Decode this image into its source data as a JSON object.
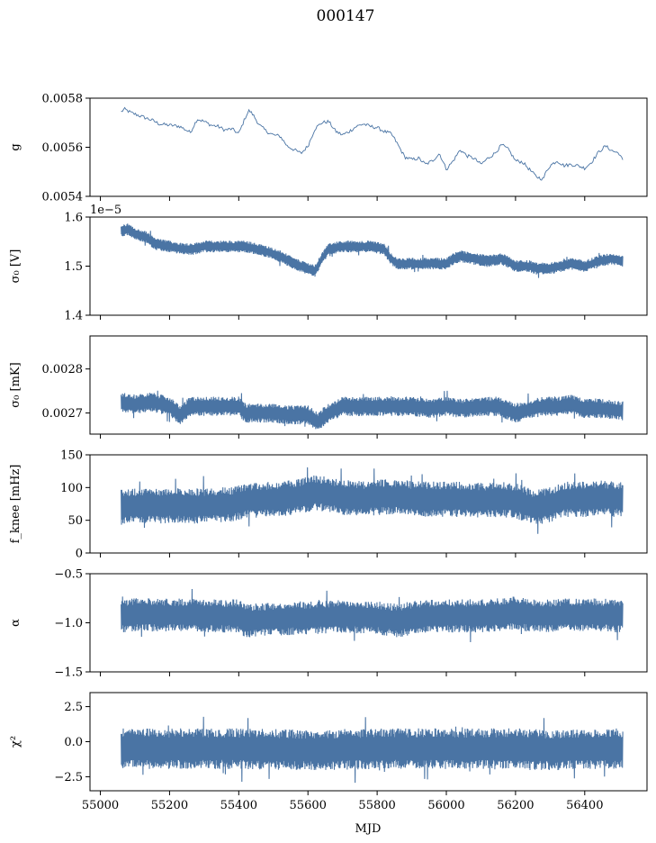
{
  "figure": {
    "title": "000147",
    "xlabel": "MJD",
    "line_color": "#4a74a4"
  },
  "chart_data": [
    {
      "type": "line",
      "name": "gain",
      "ylabel": "g",
      "xlim": [
        54970,
        56580
      ],
      "ylim": [
        0.0054,
        0.0058
      ],
      "yticks": [
        0.0054,
        0.0056,
        0.0058
      ],
      "ytick_labels": [
        "0.0054",
        "0.0056",
        "0.0058"
      ],
      "offset_text": "",
      "xticks_labeled": false,
      "style": "thin",
      "x": [
        55060,
        55070,
        55090,
        55110,
        55130,
        55150,
        55170,
        55200,
        55230,
        55260,
        55280,
        55300,
        55320,
        55340,
        55360,
        55380,
        55400,
        55420,
        55430,
        55440,
        55460,
        55480,
        55500,
        55520,
        55540,
        55560,
        55580,
        55600,
        55620,
        55640,
        55660,
        55680,
        55700,
        55720,
        55740,
        55760,
        55780,
        55800,
        55820,
        55840,
        55850,
        55860,
        55880,
        55900,
        55920,
        55940,
        55960,
        55980,
        56000,
        56020,
        56040,
        56060,
        56080,
        56100,
        56120,
        56140,
        56160,
        56180,
        56200,
        56220,
        56240,
        56260,
        56280,
        56290,
        56300,
        56320,
        56340,
        56360,
        56380,
        56400,
        56420,
        56440,
        56460,
        56480,
        56500,
        56510
      ],
      "y": [
        0.005745,
        0.005755,
        0.00574,
        0.00573,
        0.00572,
        0.00571,
        0.005695,
        0.00569,
        0.005685,
        0.00566,
        0.005715,
        0.005705,
        0.00569,
        0.005685,
        0.00567,
        0.005675,
        0.005655,
        0.005725,
        0.00575,
        0.005735,
        0.00569,
        0.005665,
        0.00565,
        0.005645,
        0.005605,
        0.00559,
        0.005575,
        0.005605,
        0.005675,
        0.0057,
        0.005705,
        0.005665,
        0.00565,
        0.005665,
        0.005685,
        0.005695,
        0.005685,
        0.00568,
        0.005665,
        0.005655,
        0.005635,
        0.00561,
        0.00556,
        0.00555,
        0.005555,
        0.00553,
        0.005545,
        0.005575,
        0.00551,
        0.005545,
        0.00559,
        0.005565,
        0.005555,
        0.00553,
        0.005555,
        0.005575,
        0.00561,
        0.00559,
        0.005545,
        0.00554,
        0.00551,
        0.00548,
        0.00547,
        0.005505,
        0.005525,
        0.005545,
        0.005525,
        0.00553,
        0.005525,
        0.005515,
        0.00554,
        0.00558,
        0.005605,
        0.005585,
        0.005575,
        0.005545
      ]
    },
    {
      "type": "line",
      "name": "sigma0_volts",
      "ylabel": "σ₀ [V]",
      "xlim": [
        54970,
        56580
      ],
      "ylim": [
        1.4,
        1.6
      ],
      "yticks": [
        1.4,
        1.5,
        1.6
      ],
      "ytick_labels": [
        "1.4",
        "1.5",
        "1.6"
      ],
      "offset_text": "1e−5",
      "xticks_labeled": false,
      "style": "band",
      "band_half_width": 0.012,
      "x": [
        55060,
        55080,
        55100,
        55130,
        55160,
        55200,
        55240,
        55270,
        55300,
        55340,
        55380,
        55420,
        55450,
        55480,
        55520,
        55560,
        55600,
        55620,
        55640,
        55660,
        55700,
        55740,
        55780,
        55820,
        55840,
        55860,
        55880,
        55920,
        55960,
        56000,
        56020,
        56040,
        56080,
        56120,
        56160,
        56200,
        56240,
        56260,
        56280,
        56300,
        56330,
        56360,
        56400,
        56440,
        56480,
        56510
      ],
      "y": [
        1.572,
        1.575,
        1.565,
        1.56,
        1.545,
        1.54,
        1.535,
        1.535,
        1.54,
        1.54,
        1.54,
        1.54,
        1.535,
        1.53,
        1.52,
        1.505,
        1.495,
        1.49,
        1.515,
        1.535,
        1.54,
        1.54,
        1.54,
        1.535,
        1.515,
        1.505,
        1.505,
        1.505,
        1.505,
        1.505,
        1.515,
        1.52,
        1.515,
        1.51,
        1.515,
        1.5,
        1.5,
        1.495,
        1.495,
        1.495,
        1.5,
        1.505,
        1.5,
        1.51,
        1.515,
        1.51
      ]
    },
    {
      "type": "line",
      "name": "sigma0_mk",
      "ylabel": "σ₀ [mK]",
      "xlim": [
        54970,
        56580
      ],
      "ylim": [
        0.002652,
        0.002875
      ],
      "yticks": [
        0.0027,
        0.0028
      ],
      "ytick_labels": [
        "0.0027",
        "0.0028"
      ],
      "offset_text": "",
      "xticks_labeled": false,
      "style": "band",
      "band_half_width": 2.2e-05,
      "x": [
        55060,
        55100,
        55150,
        55200,
        55230,
        55260,
        55300,
        55350,
        55400,
        55420,
        55450,
        55500,
        55550,
        55600,
        55630,
        55650,
        55700,
        55750,
        55800,
        55850,
        55900,
        55950,
        56000,
        56050,
        56100,
        56150,
        56200,
        56250,
        56280,
        56320,
        56360,
        56400,
        56450,
        56510
      ],
      "y": [
        0.002725,
        0.00272,
        0.002725,
        0.002715,
        0.002695,
        0.002715,
        0.002715,
        0.002715,
        0.002715,
        0.0027,
        0.0027,
        0.0027,
        0.002695,
        0.002695,
        0.00268,
        0.002695,
        0.002715,
        0.002715,
        0.002715,
        0.002715,
        0.002715,
        0.00271,
        0.002715,
        0.00271,
        0.002715,
        0.002715,
        0.0027,
        0.00271,
        0.002715,
        0.002715,
        0.00272,
        0.00271,
        0.00271,
        0.002705
      ]
    },
    {
      "type": "line",
      "name": "f_knee",
      "ylabel": "f_knee [mHz]",
      "xlim": [
        54970,
        56580
      ],
      "ylim": [
        0,
        150
      ],
      "yticks": [
        0,
        50,
        100,
        150
      ],
      "ytick_labels": [
        "0",
        "50",
        "100",
        "150"
      ],
      "offset_text": "",
      "xticks_labeled": false,
      "style": "band",
      "band_half_width": 27,
      "x": [
        55060,
        55100,
        55200,
        55300,
        55380,
        55420,
        55500,
        55560,
        55620,
        55650,
        55700,
        55760,
        55800,
        55860,
        55900,
        55950,
        56000,
        56050,
        56100,
        56150,
        56200,
        56250,
        56290,
        56340,
        56400,
        56450,
        56510
      ],
      "y": [
        70,
        72,
        72,
        72,
        74,
        80,
        82,
        85,
        92,
        90,
        85,
        83,
        85,
        86,
        83,
        82,
        82,
        82,
        80,
        82,
        80,
        70,
        72,
        82,
        82,
        84,
        82
      ]
    },
    {
      "type": "line",
      "name": "alpha",
      "ylabel": "α",
      "xlim": [
        54970,
        56580
      ],
      "ylim": [
        -1.5,
        -0.5
      ],
      "yticks": [
        -1.5,
        -1.0,
        -0.5
      ],
      "ytick_labels": [
        "−1.5",
        "−1.0",
        "−0.5"
      ],
      "offset_text": "",
      "xticks_labeled": false,
      "style": "band",
      "band_half_width": 0.17,
      "x": [
        55060,
        55100,
        55200,
        55300,
        55400,
        55420,
        55500,
        55600,
        55700,
        55800,
        55860,
        55900,
        55950,
        56000,
        56100,
        56200,
        56250,
        56300,
        56360,
        56420,
        56510
      ],
      "y": [
        -0.93,
        -0.92,
        -0.92,
        -0.93,
        -0.93,
        -0.98,
        -0.96,
        -0.95,
        -0.93,
        -0.95,
        -0.98,
        -0.95,
        -0.93,
        -0.93,
        -0.93,
        -0.9,
        -0.93,
        -0.93,
        -0.92,
        -0.92,
        -0.93
      ]
    },
    {
      "type": "line",
      "name": "chi2",
      "ylabel": "χ²",
      "xlim": [
        54970,
        56580
      ],
      "ylim": [
        -3.5,
        3.5
      ],
      "yticks": [
        -2.5,
        0.0,
        2.5
      ],
      "ytick_labels": [
        "−2.5",
        "0.0",
        "2.5"
      ],
      "offset_text": "",
      "xticks_labeled": true,
      "xticks": [
        55000,
        55200,
        55400,
        55600,
        55800,
        56000,
        56200,
        56400
      ],
      "xtick_labels": [
        "55000",
        "55200",
        "55400",
        "55600",
        "55800",
        "56000",
        "56200",
        "56400"
      ],
      "style": "band",
      "band_half_width": 1.45,
      "x": [
        55060,
        55200,
        55400,
        55600,
        55800,
        55900,
        56000,
        56200,
        56300,
        56400,
        56510
      ],
      "y": [
        -0.5,
        -0.5,
        -0.5,
        -0.6,
        -0.5,
        -0.5,
        -0.5,
        -0.5,
        -0.6,
        -0.5,
        -0.5
      ]
    }
  ]
}
